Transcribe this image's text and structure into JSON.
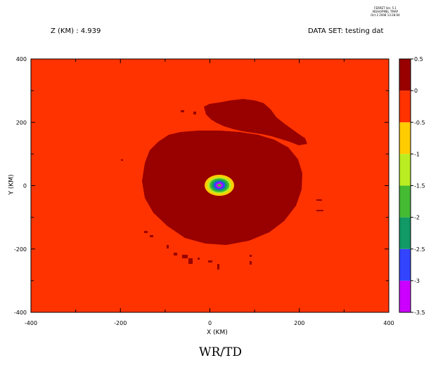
{
  "header": {
    "z_label": "Z (KM) : 4.939",
    "dataset_label": "DATA SET: testing dat",
    "ferret_lines": [
      "FERRET Ver. 5.1",
      "NOAA/PMEL TMAP",
      "Oct  2 2008 13:28:04"
    ]
  },
  "footer": {
    "title": "WR/TD"
  },
  "chart_data": {
    "type": "heatmap",
    "title": "",
    "xlabel": "X (KM)",
    "ylabel": "Y (KM)",
    "xlim": [
      -400,
      400
    ],
    "ylim": [
      -400,
      400
    ],
    "x_ticks": [
      -400,
      -200,
      0,
      200,
      400
    ],
    "y_ticks": [
      -400,
      -200,
      0,
      200,
      400
    ],
    "x_tick_labels": [
      "-400",
      "-200",
      "0",
      "200",
      "400"
    ],
    "y_tick_labels": [
      "400",
      "200",
      "0",
      "-200",
      "-400"
    ],
    "colorbar": {
      "levels": [
        -3.5,
        -3,
        -2.5,
        -2,
        -1.5,
        -1,
        -0.5,
        0,
        0.5
      ],
      "labels": [
        "0.5",
        "0",
        "-0.5",
        "-1",
        "-1.5",
        "-2",
        "-2.5",
        "-3",
        "-3.5"
      ],
      "colors": [
        "#cc00ff",
        "#3344ff",
        "#119966",
        "#44bb33",
        "#bbee22",
        "#ffcc00",
        "#ff3300",
        "#990000"
      ]
    },
    "features": [
      {
        "name": "background",
        "value_range": [
          -0.5,
          0
        ],
        "color": "#ff3300"
      },
      {
        "name": "main-ring",
        "value_range": [
          0,
          0.5
        ],
        "color": "#990000",
        "center": [
          0,
          0
        ]
      },
      {
        "name": "northeast-band",
        "value_range": [
          0,
          0.5
        ],
        "color": "#990000",
        "center": [
          130,
          210
        ]
      },
      {
        "name": "eye",
        "value_range": [
          -3.5,
          -0.5
        ],
        "center": [
          0,
          0
        ]
      }
    ]
  }
}
